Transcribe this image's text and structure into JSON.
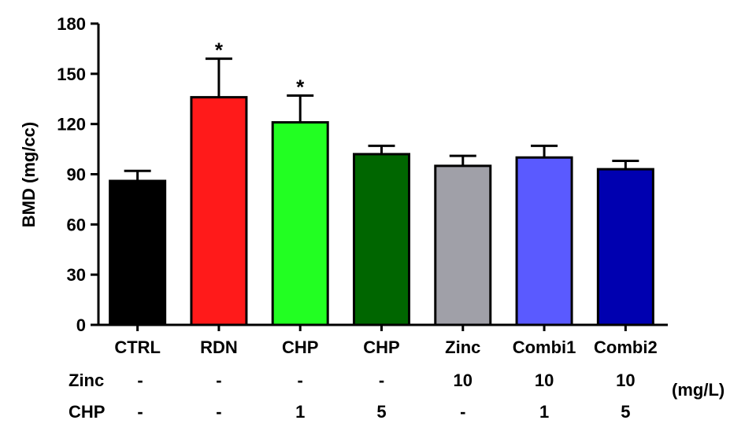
{
  "chart_data": {
    "type": "bar",
    "ylabel": "BMD (mg/cc)",
    "ylim": [
      0,
      180
    ],
    "yticks": [
      "0",
      "30",
      "60",
      "90",
      "120",
      "150",
      "180"
    ],
    "categories": [
      "CTRL",
      "RDN",
      "CHP",
      "CHP",
      "Zinc",
      "Combi1",
      "Combi2"
    ],
    "values": [
      86,
      136,
      121,
      102,
      95,
      100,
      93
    ],
    "errors": [
      6,
      23,
      16,
      5,
      6,
      7,
      5
    ],
    "significance": [
      "",
      "*",
      "*",
      "",
      "",
      "",
      ""
    ],
    "colors": [
      "#000000",
      "#ff1a1a",
      "#22ff22",
      "#006600",
      "#a0a0a8",
      "#5a5aff",
      "#0000b0"
    ],
    "error_direction": "upper",
    "grid": false,
    "treatment_table": {
      "unit": "(mg/L)",
      "rows": [
        {
          "label": "Zinc",
          "values": [
            "-",
            "-",
            "-",
            "-",
            "10",
            "10",
            "10"
          ]
        },
        {
          "label": "CHP",
          "values": [
            "-",
            "-",
            "1",
            "5",
            "-",
            "1",
            "5"
          ]
        }
      ]
    }
  }
}
